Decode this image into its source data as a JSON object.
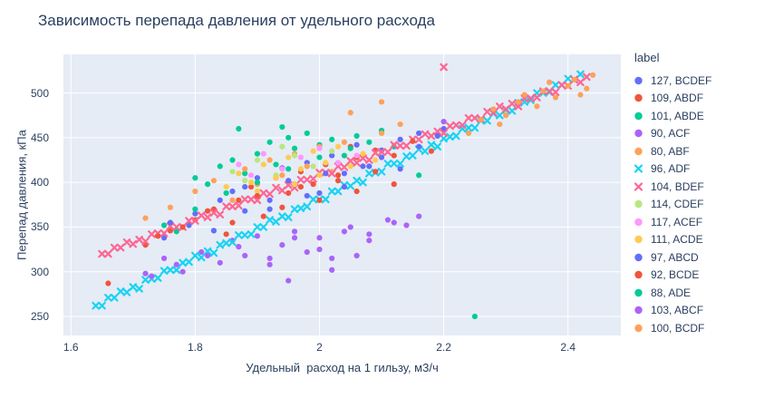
{
  "chart_data": {
    "type": "scatter",
    "title": "Зависимость перепада давления от удельного расхода",
    "xlabel": "Удельный  расход на 1 гильзу, м3/ч",
    "ylabel": "Перепад давления, кПа",
    "legend_title": "label",
    "legend_position": "right",
    "grid": true,
    "x_axis": {
      "range": [
        1.588,
        2.485
      ],
      "tick_values": [
        1.6,
        1.8,
        2,
        2.2,
        2.4
      ],
      "tick_labels": [
        "1.6",
        "1.8",
        "2",
        "2.2",
        "2.4"
      ]
    },
    "y_axis": {
      "range": [
        228.7,
        543.2
      ],
      "tick_values": [
        250,
        300,
        350,
        400,
        450,
        500
      ],
      "tick_labels": [
        "250",
        "300",
        "350",
        "400",
        "450",
        "500"
      ]
    },
    "colors": {
      "plot_bg": "#E5ECF6",
      "grid": "#FFFFFF",
      "text": "#2a3f5f"
    },
    "series": [
      {
        "label": "127, BCDEF",
        "color": "#636efa",
        "marker": "circle",
        "points": [
          [
            1.79,
            352
          ],
          [
            1.83,
            346
          ],
          [
            1.86,
            390
          ],
          [
            1.88,
            368
          ],
          [
            1.9,
            405
          ],
          [
            1.92,
            380
          ],
          [
            1.94,
            416
          ],
          [
            1.96,
            398
          ],
          [
            1.98,
            422
          ],
          [
            2.0,
            388
          ],
          [
            2.02,
            430
          ],
          [
            2.04,
            410
          ],
          [
            2.06,
            442
          ],
          [
            2.08,
            418
          ],
          [
            2.1,
            436
          ],
          [
            2.13,
            448
          ],
          [
            2.16,
            455
          ],
          [
            2.2,
            460
          ],
          [
            1.75,
            338
          ]
        ]
      },
      {
        "label": "109, ABDF",
        "color": "#EF553B",
        "marker": "circle",
        "points": [
          [
            1.66,
            287
          ],
          [
            1.72,
            330
          ],
          [
            1.76,
            346
          ],
          [
            1.8,
            358
          ],
          [
            1.83,
            370
          ],
          [
            1.85,
            342
          ],
          [
            1.87,
            380
          ],
          [
            1.89,
            395
          ],
          [
            1.91,
            362
          ],
          [
            1.93,
            405
          ],
          [
            1.95,
            388
          ],
          [
            1.97,
            412
          ],
          [
            1.99,
            398
          ],
          [
            2.01,
            420
          ],
          [
            2.03,
            408
          ],
          [
            2.06,
            428
          ],
          [
            2.09,
            436
          ],
          [
            2.12,
            430
          ]
        ]
      },
      {
        "label": "101, ABDE",
        "color": "#00cc96",
        "marker": "circle",
        "points": [
          [
            1.77,
            345
          ],
          [
            1.8,
            405
          ],
          [
            1.82,
            398
          ],
          [
            1.84,
            418
          ],
          [
            1.86,
            425
          ],
          [
            1.87,
            460
          ],
          [
            1.88,
            410
          ],
          [
            1.9,
            432
          ],
          [
            1.92,
            445
          ],
          [
            1.93,
            420
          ],
          [
            1.94,
            462
          ],
          [
            1.95,
            450
          ],
          [
            1.96,
            438
          ],
          [
            1.98,
            455
          ],
          [
            2.0,
            442
          ],
          [
            2.02,
            448
          ],
          [
            2.04,
            430
          ],
          [
            2.06,
            452
          ],
          [
            2.08,
            445
          ],
          [
            2.1,
            458
          ],
          [
            2.12,
            440
          ],
          [
            2.16,
            408
          ]
        ]
      },
      {
        "label": "90, ACF",
        "color": "#ab63fa",
        "marker": "circle",
        "points": [
          [
            1.72,
            298
          ],
          [
            1.75,
            315
          ],
          [
            1.78,
            300
          ],
          [
            1.81,
            322
          ],
          [
            1.84,
            310
          ],
          [
            1.86,
            335
          ],
          [
            1.88,
            318
          ],
          [
            1.9,
            340
          ],
          [
            1.92,
            308
          ],
          [
            1.94,
            330
          ],
          [
            1.96,
            345
          ],
          [
            1.98,
            322
          ],
          [
            2.0,
            338
          ],
          [
            2.02,
            315
          ],
          [
            2.05,
            350
          ],
          [
            2.08,
            342
          ],
          [
            2.11,
            358
          ],
          [
            2.14,
            352
          ],
          [
            2.2,
            468
          ]
        ]
      },
      {
        "label": "80, ABF",
        "color": "#FFA15A",
        "marker": "circle",
        "points": [
          [
            1.72,
            360
          ],
          [
            1.76,
            372
          ],
          [
            1.8,
            390
          ],
          [
            1.83,
            402
          ],
          [
            1.86,
            380
          ],
          [
            1.88,
            415
          ],
          [
            1.9,
            398
          ],
          [
            1.92,
            425
          ],
          [
            1.94,
            408
          ],
          [
            1.96,
            432
          ],
          [
            1.98,
            418
          ],
          [
            2.0,
            440
          ],
          [
            2.02,
            412
          ],
          [
            2.04,
            445
          ],
          [
            2.05,
            478
          ],
          [
            2.07,
            430
          ],
          [
            2.1,
            455
          ],
          [
            2.1,
            490
          ],
          [
            2.13,
            465
          ]
        ]
      },
      {
        "label": "96, ADF",
        "color": "#19d3f3",
        "marker": "x",
        "x_start": 1.64,
        "x_step": 0.01,
        "y_values": [
          262,
          262,
          271,
          271,
          278,
          277,
          283,
          281,
          291,
          292,
          293,
          301,
          302,
          302,
          310,
          311,
          318,
          316,
          323,
          321,
          330,
          332,
          333,
          341,
          341,
          342,
          350,
          350,
          358,
          356,
          362,
          361,
          370,
          371,
          373,
          381,
          381,
          381,
          390,
          390,
          397,
          396,
          402,
          400,
          410,
          411,
          412,
          421,
          421,
          421,
          429,
          430,
          437,
          435,
          442,
          440,
          449,
          451,
          452,
          460,
          461,
          461,
          469,
          469,
          477,
          475,
          481,
          480,
          489,
          490,
          492,
          500,
          500,
          501,
          509,
          509,
          516,
          515,
          521
        ]
      },
      {
        "label": "104, BDEF",
        "color": "#FF6692",
        "marker": "x",
        "x_start": 1.65,
        "x_step": 0.01,
        "y_values": [
          320,
          320,
          327,
          327,
          333,
          331,
          336,
          334,
          342,
          343,
          343,
          351,
          350,
          350,
          357,
          357,
          363,
          361,
          366,
          364,
          373,
          373,
          374,
          381,
          381,
          380,
          388,
          387,
          394,
          391,
          397,
          394,
          403,
          403,
          404,
          411,
          411,
          410,
          418,
          417,
          424,
          422,
          427,
          425,
          433,
          434,
          434,
          442,
          441,
          441,
          448,
          448,
          454,
          452,
          457,
          455,
          463,
          464,
          464,
          472,
          472,
          471,
          479,
          478,
          485,
          482,
          488,
          485,
          494,
          494,
          495,
          502,
          502,
          501,
          509,
          508,
          515,
          512,
          518
        ],
        "points": [
          [
            2.2,
            529
          ]
        ]
      },
      {
        "label": "114, CDEF",
        "color": "#B6E880",
        "marker": "circle",
        "points": [
          [
            1.86,
            412
          ],
          [
            1.88,
            402
          ],
          [
            1.9,
            425
          ],
          [
            1.93,
            408
          ],
          [
            1.94,
            440
          ],
          [
            1.96,
            430
          ],
          [
            1.99,
            418
          ],
          [
            2.02,
            435
          ]
        ]
      },
      {
        "label": "117, ACEF",
        "color": "#FF97FF",
        "marker": "circle",
        "points": [
          [
            1.87,
            420
          ],
          [
            1.89,
            408
          ],
          [
            1.91,
            432
          ],
          [
            1.94,
            415
          ],
          [
            1.97,
            428
          ],
          [
            2.0,
            438
          ],
          [
            2.03,
            422
          ],
          [
            2.06,
            430
          ]
        ]
      },
      {
        "label": "111, ACDE",
        "color": "#FECB52",
        "marker": "circle",
        "points": [
          [
            1.85,
            395
          ],
          [
            1.87,
            410
          ],
          [
            1.89,
            400
          ],
          [
            1.9,
            390
          ],
          [
            1.91,
            420
          ],
          [
            1.93,
            405
          ],
          [
            1.95,
            428
          ],
          [
            1.96,
            398
          ],
          [
            1.97,
            415
          ],
          [
            1.99,
            435
          ],
          [
            2.0,
            408
          ],
          [
            2.01,
            422
          ],
          [
            2.03,
            440
          ],
          [
            2.05,
            418
          ],
          [
            2.07,
            432
          ],
          [
            2.09,
            425
          ]
        ]
      },
      {
        "label": "97, ABCD",
        "color": "#636efa",
        "marker": "circle",
        "points": [
          [
            1.76,
            355
          ],
          [
            1.8,
            365
          ],
          [
            1.84,
            380
          ],
          [
            1.88,
            395
          ],
          [
            1.92,
            370
          ],
          [
            1.95,
            402
          ],
          [
            1.98,
            385
          ],
          [
            2.01,
            410
          ],
          [
            2.04,
            395
          ],
          [
            2.07,
            418
          ],
          [
            2.1,
            428
          ],
          [
            2.13,
            415
          ],
          [
            2.16,
            440
          ],
          [
            2.19,
            452
          ]
        ]
      },
      {
        "label": "92, BCDE",
        "color": "#EF553B",
        "marker": "circle",
        "points": [
          [
            1.74,
            340
          ],
          [
            1.78,
            350
          ],
          [
            1.82,
            368
          ],
          [
            1.86,
            355
          ],
          [
            1.9,
            385
          ],
          [
            1.94,
            372
          ],
          [
            1.97,
            395
          ],
          [
            2.0,
            380
          ],
          [
            2.03,
            402
          ],
          [
            2.05,
            440
          ],
          [
            2.06,
            390
          ],
          [
            2.09,
            412
          ],
          [
            2.12,
            398
          ],
          [
            2.15,
            446
          ],
          [
            2.18,
            435
          ]
        ]
      },
      {
        "label": "88, ADE",
        "color": "#00cc96",
        "marker": "circle",
        "points": [
          [
            1.75,
            352
          ],
          [
            1.8,
            370
          ],
          [
            1.85,
            388
          ],
          [
            1.9,
            400
          ],
          [
            1.95,
            415
          ],
          [
            2.0,
            428
          ],
          [
            2.05,
            438
          ],
          [
            2.25,
            250
          ]
        ]
      },
      {
        "label": "103, ABCF",
        "color": "#ab63fa",
        "marker": "circle",
        "points": [
          [
            1.73,
            295
          ],
          [
            1.77,
            308
          ],
          [
            1.82,
            318
          ],
          [
            1.87,
            328
          ],
          [
            1.92,
            315
          ],
          [
            1.95,
            290
          ],
          [
            1.96,
            338
          ],
          [
            2.0,
            325
          ],
          [
            2.02,
            302
          ],
          [
            2.04,
            345
          ],
          [
            2.06,
            318
          ],
          [
            2.08,
            335
          ],
          [
            2.12,
            355
          ],
          [
            2.16,
            362
          ]
        ]
      },
      {
        "label": "100, BCDF",
        "color": "#FFA15A",
        "marker": "circle",
        "points": [
          [
            2.24,
            455
          ],
          [
            2.26,
            470
          ],
          [
            2.28,
            482
          ],
          [
            2.29,
            465
          ],
          [
            2.3,
            475
          ],
          [
            2.32,
            490
          ],
          [
            2.33,
            498
          ],
          [
            2.35,
            485
          ],
          [
            2.36,
            502
          ],
          [
            2.37,
            512
          ],
          [
            2.38,
            495
          ],
          [
            2.4,
            508
          ],
          [
            2.41,
            515
          ],
          [
            2.42,
            498
          ],
          [
            2.43,
            505
          ],
          [
            2.44,
            520
          ]
        ]
      }
    ]
  }
}
